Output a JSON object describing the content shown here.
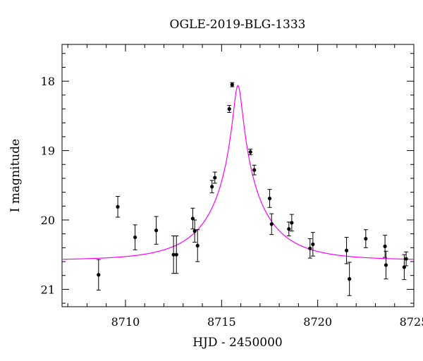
{
  "chart_data": {
    "type": "scatter",
    "title": "OGLE-2019-BLG-1333",
    "xlabel": "HJD - 2450000",
    "ylabel": "I magnitude",
    "xlim": [
      8706.7,
      8725.0
    ],
    "ylim": [
      21.25,
      17.47
    ],
    "y_inverted": true,
    "x_major_ticks": [
      8710,
      8715,
      8720,
      8725
    ],
    "x_tick_labels": [
      "8710",
      "8715",
      "8720",
      "8725"
    ],
    "y_major_ticks": [
      18,
      19,
      20,
      21
    ],
    "y_tick_labels": [
      "18",
      "19",
      "20",
      "21"
    ],
    "grid": false,
    "colors": {
      "model": "#ff00ff",
      "points": "#000000",
      "frame": "#000000"
    },
    "series": [
      {
        "type": "errorbar",
        "points": [
          {
            "x": 8708.6,
            "y": 20.79,
            "err": 0.22
          },
          {
            "x": 8709.6,
            "y": 19.81,
            "err": 0.15
          },
          {
            "x": 8710.5,
            "y": 20.25,
            "err": 0.18
          },
          {
            "x": 8711.6,
            "y": 20.15,
            "err": 0.2
          },
          {
            "x": 8712.5,
            "y": 20.5,
            "err": 0.27
          },
          {
            "x": 8712.65,
            "y": 20.5,
            "err": 0.27
          },
          {
            "x": 8713.5,
            "y": 19.98,
            "err": 0.15
          },
          {
            "x": 8713.6,
            "y": 20.16,
            "err": 0.16
          },
          {
            "x": 8713.75,
            "y": 20.37,
            "err": 0.23
          },
          {
            "x": 8714.5,
            "y": 19.52,
            "err": 0.09
          },
          {
            "x": 8714.65,
            "y": 19.39,
            "err": 0.08
          },
          {
            "x": 8715.4,
            "y": 18.4,
            "err": 0.05
          },
          {
            "x": 8715.55,
            "y": 18.05,
            "err": 0.03
          },
          {
            "x": 8716.5,
            "y": 19.02,
            "err": 0.04
          },
          {
            "x": 8716.7,
            "y": 19.28,
            "err": 0.07
          },
          {
            "x": 8717.5,
            "y": 19.69,
            "err": 0.13
          },
          {
            "x": 8717.6,
            "y": 20.06,
            "err": 0.15
          },
          {
            "x": 8718.5,
            "y": 20.13,
            "err": 0.1
          },
          {
            "x": 8718.65,
            "y": 20.04,
            "err": 0.12
          },
          {
            "x": 8719.6,
            "y": 20.41,
            "err": 0.14
          },
          {
            "x": 8719.75,
            "y": 20.35,
            "err": 0.17
          },
          {
            "x": 8721.5,
            "y": 20.44,
            "err": 0.19
          },
          {
            "x": 8721.65,
            "y": 20.85,
            "err": 0.24
          },
          {
            "x": 8722.5,
            "y": 20.27,
            "err": 0.13
          },
          {
            "x": 8723.5,
            "y": 20.38,
            "err": 0.16
          },
          {
            "x": 8723.55,
            "y": 20.65,
            "err": 0.2
          },
          {
            "x": 8724.5,
            "y": 20.68,
            "err": 0.18
          },
          {
            "x": 8724.6,
            "y": 20.56,
            "err": 0.1
          }
        ]
      },
      {
        "type": "line",
        "model": "point-lens microlensing fit",
        "t0": 8715.85,
        "u0": 0.071,
        "tE": 3.1,
        "baseline_mag": 20.58,
        "blend_fraction": 0.7
      }
    ]
  }
}
